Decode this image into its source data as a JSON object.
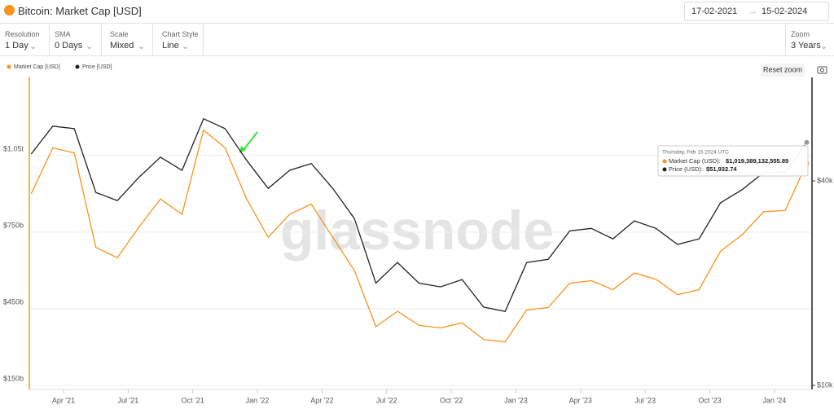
{
  "ui": {
    "title": "Bitcoin: Market Cap [USD]",
    "date_from": "17-02-2021",
    "date_to": "15-02-2024",
    "controls": [
      {
        "label": "Resolution",
        "value": "1 Day"
      },
      {
        "label": "SMA",
        "value": "0 Days"
      },
      {
        "label": "Scale",
        "value": "Mixed"
      },
      {
        "label": "Chart Style",
        "value": "Line"
      }
    ],
    "zoom": {
      "label": "Zoom",
      "value": "3 Years"
    },
    "reset": "Reset zoom",
    "watermark": "glassnode"
  },
  "chart_data": {
    "type": "line",
    "x": [
      "2021-02",
      "2021-03",
      "2021-04",
      "2021-05",
      "2021-06",
      "2021-07",
      "2021-08",
      "2021-09",
      "2021-10",
      "2021-11",
      "2021-12",
      "2022-01",
      "2022-02",
      "2022-03",
      "2022-04",
      "2022-05",
      "2022-06",
      "2022-07",
      "2022-08",
      "2022-09",
      "2022-10",
      "2022-11",
      "2022-12",
      "2023-01",
      "2023-02",
      "2023-03",
      "2023-04",
      "2023-05",
      "2023-06",
      "2023-07",
      "2023-08",
      "2023-09",
      "2023-10",
      "2023-11",
      "2023-12",
      "2024-01",
      "2024-02"
    ],
    "series": [
      {
        "name": "Market Cap [USD]",
        "color": "#f7931a",
        "values": [
          900000000000,
          1080000000000,
          1060000000000,
          690000000000,
          650000000000,
          770000000000,
          880000000000,
          820000000000,
          1150000000000,
          1080000000000,
          880000000000,
          730000000000,
          820000000000,
          860000000000,
          730000000000,
          600000000000,
          380000000000,
          440000000000,
          385000000000,
          375000000000,
          395000000000,
          330000000000,
          320000000000,
          445000000000,
          455000000000,
          550000000000,
          560000000000,
          525000000000,
          590000000000,
          565000000000,
          505000000000,
          525000000000,
          675000000000,
          740000000000,
          830000000000,
          835000000000,
          1019389132555.89
        ]
      },
      {
        "name": "Price [USD]",
        "color": "#222222",
        "axis": "y2",
        "values": [
          48000,
          58000,
          57000,
          37000,
          35000,
          41000,
          47000,
          43000,
          61000,
          57000,
          46000,
          38000,
          43000,
          45000,
          38000,
          31000,
          20000,
          23000,
          20000,
          19500,
          20500,
          17000,
          16500,
          23000,
          23500,
          28500,
          29000,
          27000,
          30500,
          29000,
          26000,
          27000,
          34500,
          37700,
          42300,
          42500,
          51932.74
        ]
      }
    ],
    "xticks": [
      {
        "value": "2021-04",
        "label": "Apr '21"
      },
      {
        "value": "2021-07",
        "label": "Jul '21"
      },
      {
        "value": "2021-10",
        "label": "Oct '21"
      },
      {
        "value": "2022-01",
        "label": "Jan '22"
      },
      {
        "value": "2022-04",
        "label": "Apr '22"
      },
      {
        "value": "2022-07",
        "label": "Jul '22"
      },
      {
        "value": "2022-10",
        "label": "Oct '22"
      },
      {
        "value": "2023-01",
        "label": "Jan '23"
      },
      {
        "value": "2023-04",
        "label": "Apr '23"
      },
      {
        "value": "2023-07",
        "label": "Jul '23"
      },
      {
        "value": "2023-10",
        "label": "Oct '23"
      },
      {
        "value": "2024-01",
        "label": "Jan '24"
      }
    ],
    "ylim": [
      150000000000,
      1340000000000
    ],
    "yticks": [
      {
        "value": 150000000000,
        "label": "$150b"
      },
      {
        "value": 450000000000,
        "label": "$450b"
      },
      {
        "value": 750000000000,
        "label": "$750b"
      },
      {
        "value": 1050000000000,
        "label": "$1.05t"
      }
    ],
    "y2lim": [
      10000,
      78500
    ],
    "y2log": true,
    "y2ticks": [
      {
        "value": 10000,
        "label": "$10k"
      },
      {
        "value": 40000,
        "label": "$40k"
      }
    ],
    "grid": true,
    "legend": "top-left",
    "tooltip": {
      "date": "Thursday, Feb 15 2024 UTC",
      "entries": [
        "Market Cap (USD):",
        "Price (USD):"
      ],
      "values": [
        "$1,019,389,132,555.89",
        "$51,932.74"
      ]
    }
  }
}
